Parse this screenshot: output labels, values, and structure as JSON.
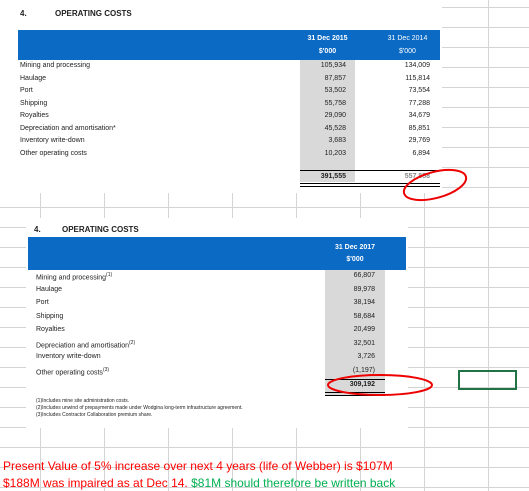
{
  "table1": {
    "number": "4.",
    "title": "OPERATING COSTS",
    "columns": [
      {
        "date": "31 Dec 2015",
        "unit": "$'000"
      },
      {
        "date": "31 Dec 2014",
        "unit": "$'000"
      }
    ],
    "rows": [
      {
        "label": "Mining and processing",
        "values": [
          "105,934",
          "134,009"
        ]
      },
      {
        "label": "Haulage",
        "values": [
          "87,857",
          "115,814"
        ]
      },
      {
        "label": "Port",
        "values": [
          "53,502",
          "73,554"
        ]
      },
      {
        "label": "Shipping",
        "values": [
          "55,758",
          "77,288"
        ]
      },
      {
        "label": "Royalties",
        "values": [
          "29,090",
          "34,679"
        ]
      },
      {
        "label": "Depreciation and amortisation*",
        "values": [
          "45,528",
          "85,851"
        ]
      },
      {
        "label": "Inventory write-down",
        "values": [
          "3,683",
          "29,769"
        ]
      },
      {
        "label": "Other operating costs",
        "values": [
          "10,203",
          "6,894"
        ]
      }
    ],
    "total": [
      "391,555",
      "557,858"
    ]
  },
  "table2": {
    "number": "4.",
    "title": "OPERATING COSTS",
    "columns": [
      {
        "date": "31 Dec 2017",
        "unit": "$'000"
      }
    ],
    "rows": [
      {
        "label": "Mining and processing",
        "note": "(1)",
        "value": "66,807"
      },
      {
        "label": "Haulage",
        "value": "89,978"
      },
      {
        "label": "Port",
        "value": "38,194"
      },
      {
        "label": "Shipping",
        "value": "58,684"
      },
      {
        "label": "Royalties",
        "value": "20,499"
      },
      {
        "label": "Depreciation and amortisation",
        "note": "(2)",
        "value": "32,501"
      },
      {
        "label": "Inventory write-down",
        "value": "3,726"
      },
      {
        "label": "Other operating costs",
        "note": "(3)",
        "value": "(1,197)"
      }
    ],
    "total": "309,192",
    "footnotes": [
      "(1)Includes mine site administration costs.",
      "(2)Includes unwind of prepayments made under Wodgina long-term infrastructure agreement.",
      "(3)Includes Contractor Collaboration premium share."
    ]
  },
  "notes": [
    "Present Value of 5% increase over next 4 years (life of Webber) is $107M",
    "$188M was impaired as at Dec 14.",
    "$81M should therefore be written back"
  ]
}
